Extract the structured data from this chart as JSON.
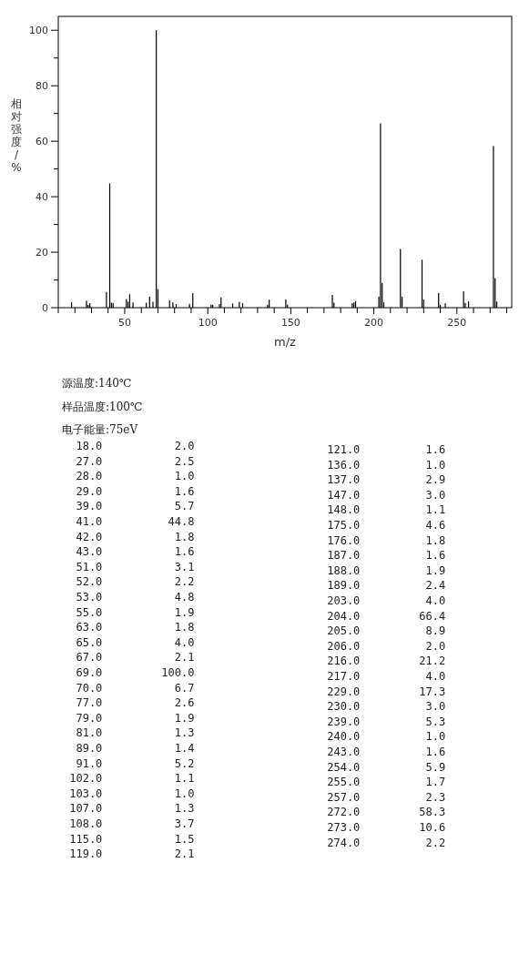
{
  "chart_data": {
    "type": "bar",
    "xlabel": "m/z",
    "ylabel": "相对强度/%",
    "color": "#000000",
    "x": [
      18,
      27,
      28,
      29,
      39,
      41,
      42,
      43,
      51,
      52,
      53,
      55,
      63,
      65,
      67,
      69,
      70,
      77,
      79,
      81,
      89,
      91,
      102,
      103,
      107,
      108,
      115,
      119,
      121,
      136,
      137,
      147,
      148,
      175,
      176,
      187,
      188,
      189,
      203,
      204,
      205,
      206,
      216,
      217,
      229,
      230,
      239,
      240,
      243,
      254,
      255,
      257,
      272,
      273,
      274
    ],
    "values": [
      2.0,
      2.5,
      1.0,
      1.6,
      5.7,
      44.8,
      1.8,
      1.6,
      3.1,
      2.2,
      4.8,
      1.9,
      1.8,
      4.0,
      2.1,
      100.0,
      6.7,
      2.6,
      1.9,
      1.3,
      1.4,
      5.2,
      1.1,
      1.0,
      1.3,
      3.7,
      1.5,
      2.1,
      1.6,
      1.0,
      2.9,
      3.0,
      1.1,
      4.6,
      1.8,
      1.6,
      1.9,
      2.4,
      4.0,
      66.4,
      8.9,
      2.0,
      21.2,
      4.0,
      17.3,
      3.0,
      5.3,
      1.0,
      1.6,
      5.9,
      1.7,
      2.3,
      58.3,
      10.6,
      2.2
    ],
    "xlim": [
      10,
      283
    ],
    "xticks": [
      {
        "value": 10,
        "label": null
      },
      {
        "value": 20,
        "label": null
      },
      {
        "value": 30,
        "label": null
      },
      {
        "value": 40,
        "label": null
      },
      50,
      {
        "value": 60,
        "label": null
      },
      {
        "value": 70,
        "label": null
      },
      {
        "value": 80,
        "label": null
      },
      {
        "value": 90,
        "label": null
      },
      100,
      {
        "value": 110,
        "label": null
      },
      {
        "value": 120,
        "label": null
      },
      {
        "value": 130,
        "label": null
      },
      {
        "value": 140,
        "label": null
      },
      150,
      {
        "value": 160,
        "label": null
      },
      {
        "value": 170,
        "label": null
      },
      {
        "value": 180,
        "label": null
      },
      {
        "value": 190,
        "label": null
      },
      200,
      {
        "value": 210,
        "label": null
      },
      {
        "value": 220,
        "label": null
      },
      {
        "value": 230,
        "label": null
      },
      {
        "value": 240,
        "label": null
      },
      250,
      {
        "value": 260,
        "label": null
      },
      {
        "value": 270,
        "label": null
      },
      {
        "value": 280,
        "label": null
      }
    ],
    "ylim": [
      0,
      105
    ],
    "yticks": [
      0,
      {
        "value": 10,
        "label": null
      },
      20,
      {
        "value": 30,
        "label": null
      },
      40,
      {
        "value": 50,
        "label": null
      },
      60,
      {
        "value": 70,
        "label": null
      },
      80,
      {
        "value": 90,
        "label": null
      },
      100
    ],
    "grid": false,
    "annotations": [
      "源温度:140℃",
      "样品温度:100℃",
      "电子能量:75eV",
      "  18.0           2.0",
      "  27.0           2.5",
      "  28.0           1.0",
      "  29.0           1.6",
      "  39.0           5.7",
      "  41.0          44.8",
      "  42.0           1.8",
      "  43.0           1.6",
      "  51.0           3.1",
      "  52.0           2.2",
      "  53.0           4.8",
      "  55.0           1.9",
      "  63.0           1.8",
      "  65.0           4.0",
      "  67.0           2.1",
      "  69.0         100.0",
      "  70.0           6.7",
      "  77.0           2.6",
      "  79.0           1.9",
      "  81.0           1.3",
      "  89.0           1.4",
      "  91.0           5.2",
      " 102.0           1.1",
      " 103.0           1.0",
      " 107.0           1.3",
      " 108.0           3.7",
      " 115.0           1.5",
      " 119.0           2.1",
      " 121.0          1.6",
      " 136.0          1.0",
      " 137.0          2.9",
      " 147.0          3.0",
      " 148.0          1.1",
      " 175.0          4.6",
      " 176.0          1.8",
      " 187.0          1.6",
      " 188.0          1.9",
      " 189.0          2.4",
      " 203.0          4.0",
      " 204.0         66.4",
      " 205.0          8.9",
      " 206.0          2.0",
      " 216.0         21.2",
      " 217.0          4.0",
      " 229.0         17.3",
      " 230.0          3.0",
      " 239.0          5.3",
      " 240.0          1.0",
      " 243.0          1.6",
      " 254.0          5.9",
      " 255.0          1.7",
      " 257.0          2.3",
      " 272.0         58.3",
      " 273.0         10.6",
      " 274.0          2.2"
    ]
  }
}
